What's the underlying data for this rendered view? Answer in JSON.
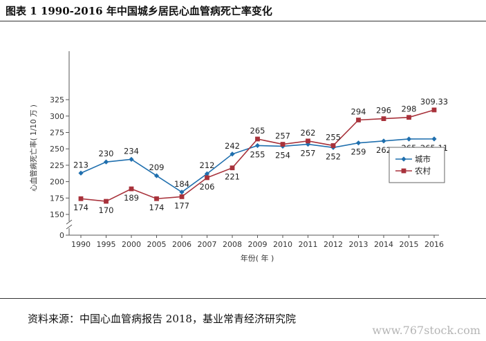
{
  "figure_title": "图表 1 1990-2016 年中国城乡居民心血管病死亡率变化",
  "source_note": "资料来源：中国心血管病报告 2018，基业常青经济研究院",
  "watermark": "www.767stock.com",
  "chart_data": {
    "type": "line",
    "title": "",
    "xlabel": "年份( 年 )",
    "ylabel": "心血管病死亡率( 1/10 万 )",
    "categories": [
      "1990",
      "1995",
      "2000",
      "2005",
      "2006",
      "2007",
      "2008",
      "2009",
      "2010",
      "2011",
      "2012",
      "2013",
      "2014",
      "2015",
      "2016"
    ],
    "yticks": [
      "0",
      "150",
      "175",
      "200",
      "225",
      "250",
      "275",
      "300",
      "325"
    ],
    "ylim": [
      150,
      325
    ],
    "axis_break": true,
    "grid": false,
    "legend_position": "right",
    "series": [
      {
        "name": "城市",
        "color": "#1f6fae",
        "marker": "diamond",
        "values": [
          213,
          230,
          234,
          209,
          184,
          212,
          242,
          255,
          254,
          257,
          252,
          259,
          262,
          265,
          265.11
        ],
        "labels": [
          "213",
          "230",
          "234",
          "209",
          "184",
          "212",
          "242",
          "255",
          "254",
          "257",
          "252",
          "259",
          "262",
          "265",
          "265.11"
        ]
      },
      {
        "name": "农村",
        "color": "#a8323b",
        "marker": "square",
        "values": [
          174,
          170,
          189,
          174,
          177,
          206,
          221,
          265,
          257,
          262,
          255,
          294,
          296,
          298,
          309.33
        ],
        "labels": [
          "174",
          "170",
          "189",
          "174",
          "177",
          "206",
          "221",
          "265",
          "257",
          "262",
          "255",
          "294",
          "296",
          "298",
          "309.33"
        ]
      }
    ]
  }
}
